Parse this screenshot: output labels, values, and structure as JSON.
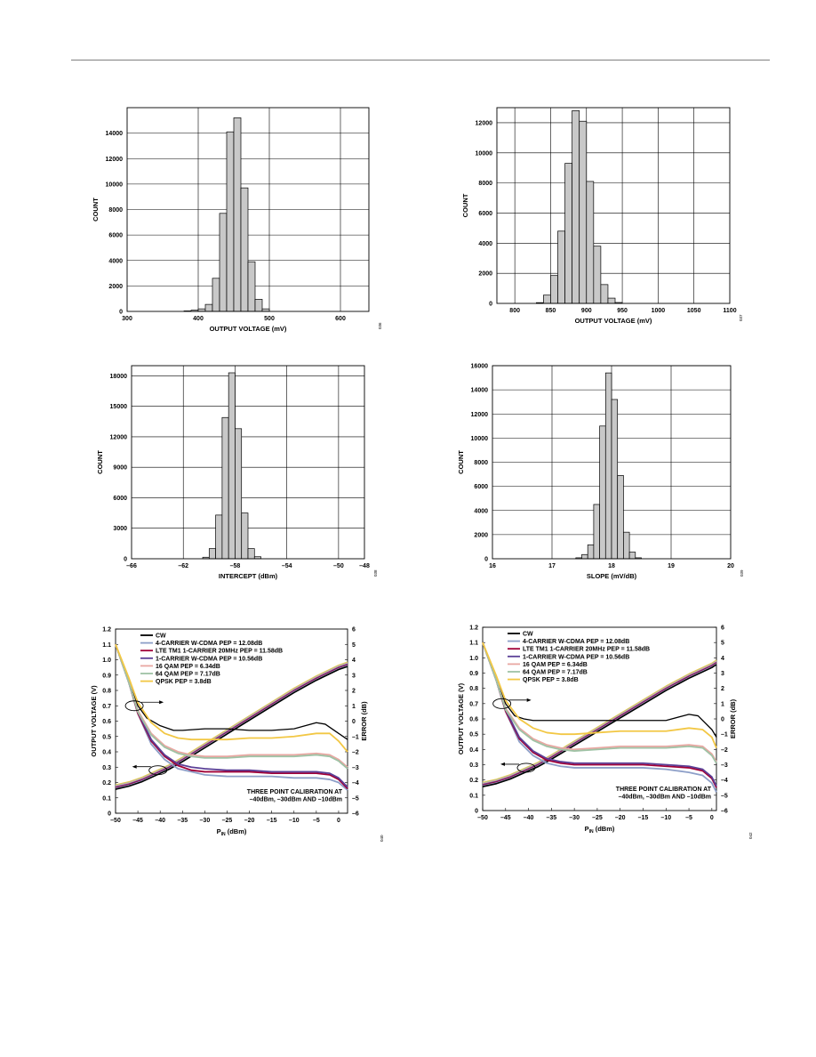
{
  "chart_data": [
    {
      "type": "bar",
      "xlabel": "OUTPUT VOLTAGE (mV)",
      "ylabel": "COUNT",
      "fig_id": "036",
      "xlim": [
        300,
        640
      ],
      "ylim": [
        0,
        16000
      ],
      "xticks": [
        300,
        400,
        500,
        600
      ],
      "yticks": [
        0,
        2000,
        4000,
        6000,
        8000,
        10000,
        12000,
        14000
      ],
      "bin_width": 10,
      "bins": [
        {
          "x": 380,
          "count": 40
        },
        {
          "x": 390,
          "count": 100
        },
        {
          "x": 400,
          "count": 200
        },
        {
          "x": 410,
          "count": 550
        },
        {
          "x": 420,
          "count": 2600
        },
        {
          "x": 430,
          "count": 7700
        },
        {
          "x": 440,
          "count": 14100
        },
        {
          "x": 450,
          "count": 15200
        },
        {
          "x": 460,
          "count": 9700
        },
        {
          "x": 470,
          "count": 3900
        },
        {
          "x": 480,
          "count": 950
        },
        {
          "x": 490,
          "count": 200
        }
      ]
    },
    {
      "type": "bar",
      "xlabel": "OUTPUT VOLTAGE (mV)",
      "ylabel": "COUNT",
      "fig_id": "037",
      "xlim": [
        775,
        1100
      ],
      "ylim": [
        0,
        13000
      ],
      "xticks": [
        800,
        850,
        900,
        950,
        1000,
        1050,
        1100
      ],
      "yticks": [
        0,
        2000,
        4000,
        6000,
        8000,
        10000,
        12000
      ],
      "bin_width": 10,
      "bins": [
        {
          "x": 830,
          "count": 50
        },
        {
          "x": 840,
          "count": 550
        },
        {
          "x": 850,
          "count": 1850
        },
        {
          "x": 860,
          "count": 4800
        },
        {
          "x": 870,
          "count": 9300
        },
        {
          "x": 880,
          "count": 12800
        },
        {
          "x": 890,
          "count": 12100
        },
        {
          "x": 900,
          "count": 8100
        },
        {
          "x": 910,
          "count": 3800
        },
        {
          "x": 920,
          "count": 1250
        },
        {
          "x": 930,
          "count": 350
        },
        {
          "x": 940,
          "count": 60
        }
      ]
    },
    {
      "type": "bar",
      "xlabel": "INTERCEPT (dBm)",
      "ylabel": "COUNT",
      "fig_id": "038",
      "xlim": [
        -66,
        -48
      ],
      "ylim": [
        0,
        19000
      ],
      "xticks": [
        -66,
        -62,
        -58,
        -54,
        -50,
        -48
      ],
      "ytick_values": [
        0,
        3000,
        6000,
        9000,
        12000,
        15000,
        18000
      ],
      "ytick_labels": [
        "0",
        "3000",
        "6000",
        "9000",
        "12000",
        "15000",
        "18000"
      ],
      "bin_width": 0.5,
      "bins": [
        {
          "x": -60.5,
          "count": 150
        },
        {
          "x": -60.0,
          "count": 1000
        },
        {
          "x": -59.5,
          "count": 4300
        },
        {
          "x": -59.0,
          "count": 13900
        },
        {
          "x": -58.5,
          "count": 18300
        },
        {
          "x": -58.0,
          "count": 12800
        },
        {
          "x": -57.5,
          "count": 4500
        },
        {
          "x": -57.0,
          "count": 1000
        },
        {
          "x": -56.5,
          "count": 200
        }
      ]
    },
    {
      "type": "bar",
      "xlabel": "SLOPE (mV/dB)",
      "ylabel": "COUNT",
      "fig_id": "039",
      "xlim": [
        16,
        20
      ],
      "ylim": [
        0,
        16000
      ],
      "xticks": [
        16,
        17,
        18,
        19,
        20
      ],
      "yticks": [
        0,
        2000,
        4000,
        6000,
        8000,
        10000,
        12000,
        14000,
        16000
      ],
      "bin_width": 0.1,
      "bins": [
        {
          "x": 17.4,
          "count": 80
        },
        {
          "x": 17.5,
          "count": 350
        },
        {
          "x": 17.6,
          "count": 1150
        },
        {
          "x": 17.7,
          "count": 4500
        },
        {
          "x": 17.8,
          "count": 11000
        },
        {
          "x": 17.9,
          "count": 15400
        },
        {
          "x": 18.0,
          "count": 13200
        },
        {
          "x": 18.1,
          "count": 6900
        },
        {
          "x": 18.2,
          "count": 2200
        },
        {
          "x": 18.3,
          "count": 550
        },
        {
          "x": 18.4,
          "count": 80
        }
      ]
    },
    {
      "type": "line",
      "xlabel_main": "P",
      "xlabel_sub": "IN",
      "xlabel_tail": " (dBm)",
      "ylabel": "OUTPUT VOLTAGE (V)",
      "y2label": "ERROR (dB)",
      "fig_id": "040",
      "xlim": [
        -50,
        2
      ],
      "ylim": [
        0,
        1.2
      ],
      "y2lim": [
        -6,
        6
      ],
      "xticks": [
        -50,
        -45,
        -40,
        -35,
        -30,
        -25,
        -20,
        -15,
        -10,
        -5,
        0
      ],
      "yticks": [
        0,
        0.1,
        0.2,
        0.3,
        0.4,
        0.5,
        0.6,
        0.7,
        0.8,
        0.9,
        1.0,
        1.1,
        1.2
      ],
      "y2ticks": [
        -6,
        -5,
        -4,
        -3,
        -2,
        -1,
        0,
        1,
        2,
        3,
        4,
        5,
        6
      ],
      "note_lines": [
        "THREE POINT CALIBRATION AT",
        "–40dBm, –30dBm AND –10dBm"
      ],
      "output_curve": {
        "x": [
          -50,
          -47,
          -44,
          -41,
          -38,
          -35,
          -30,
          -25,
          -20,
          -15,
          -10,
          -5,
          0,
          2
        ],
        "y": [
          0.17,
          0.19,
          0.22,
          0.26,
          0.3,
          0.35,
          0.44,
          0.53,
          0.62,
          0.71,
          0.8,
          0.88,
          0.95,
          0.97
        ]
      },
      "series": [
        {
          "name": "CW",
          "color": "#000000",
          "x": [
            -50,
            -47,
            -45,
            -43,
            -40,
            -37,
            -35,
            -30,
            -25,
            -20,
            -15,
            -10,
            -5,
            -3,
            0,
            2
          ],
          "y": [
            5.0,
            2.5,
            1.0,
            0.2,
            -0.3,
            -0.6,
            -0.6,
            -0.5,
            -0.5,
            -0.6,
            -0.6,
            -0.5,
            -0.1,
            -0.2,
            -0.8,
            -1.2
          ]
        },
        {
          "name": "4-CARRIER W-CDMA PEP = 12.08dB",
          "color": "#8d9fc8",
          "x": [
            -50,
            -47,
            -45,
            -42,
            -39,
            -36,
            -33,
            -30,
            -25,
            -20,
            -15,
            -10,
            -5,
            -2,
            0,
            2
          ],
          "y": [
            5.0,
            2.5,
            0.5,
            -1.5,
            -2.5,
            -3.1,
            -3.3,
            -3.5,
            -3.6,
            -3.6,
            -3.6,
            -3.7,
            -3.7,
            -3.8,
            -4.0,
            -4.5
          ]
        },
        {
          "name": "LTE TM1 1-CARRIER 20MHz PEP = 11.58dB",
          "color": "#a00037",
          "x": [
            -50,
            -47,
            -45,
            -42,
            -39,
            -36,
            -33,
            -30,
            -25,
            -20,
            -15,
            -10,
            -5,
            -2,
            0,
            2
          ],
          "y": [
            5.0,
            2.5,
            0.5,
            -1.3,
            -2.3,
            -2.9,
            -3.2,
            -3.3,
            -3.3,
            -3.3,
            -3.4,
            -3.4,
            -3.4,
            -3.5,
            -3.8,
            -4.4
          ]
        },
        {
          "name": "1-CARRIER W-CDMA PEP = 10.56dB",
          "color": "#5b3f96",
          "x": [
            -50,
            -47,
            -45,
            -42,
            -39,
            -36,
            -33,
            -30,
            -25,
            -20,
            -15,
            -10,
            -5,
            -2,
            0,
            2
          ],
          "y": [
            5.0,
            2.5,
            0.6,
            -1.2,
            -2.2,
            -2.8,
            -3.0,
            -3.1,
            -3.2,
            -3.2,
            -3.3,
            -3.3,
            -3.3,
            -3.4,
            -3.7,
            -4.3
          ]
        },
        {
          "name": "16 QAM PEP = 6.34dB",
          "color": "#e9a7a2",
          "x": [
            -50,
            -47,
            -45,
            -42,
            -39,
            -36,
            -33,
            -30,
            -25,
            -20,
            -15,
            -10,
            -5,
            -2,
            0,
            2
          ],
          "y": [
            5.0,
            2.5,
            0.7,
            -0.8,
            -1.6,
            -2.0,
            -2.2,
            -2.3,
            -2.3,
            -2.2,
            -2.2,
            -2.2,
            -2.1,
            -2.2,
            -2.5,
            -3.0
          ]
        },
        {
          "name": "64 QAM PEP = 7.17dB",
          "color": "#9fc2a5",
          "x": [
            -50,
            -47,
            -45,
            -42,
            -39,
            -36,
            -33,
            -30,
            -25,
            -20,
            -15,
            -10,
            -5,
            -2,
            0,
            2
          ],
          "y": [
            5.0,
            2.5,
            0.6,
            -0.9,
            -1.7,
            -2.1,
            -2.3,
            -2.4,
            -2.4,
            -2.3,
            -2.3,
            -2.3,
            -2.2,
            -2.3,
            -2.6,
            -3.1
          ]
        },
        {
          "name": "QPSK PEP = 3.8dB",
          "color": "#f2c744",
          "x": [
            -50,
            -47,
            -45,
            -42,
            -39,
            -36,
            -33,
            -30,
            -25,
            -20,
            -15,
            -10,
            -5,
            -2,
            0,
            2
          ],
          "y": [
            5.0,
            2.8,
            1.2,
            -0.1,
            -0.8,
            -1.1,
            -1.2,
            -1.2,
            -1.2,
            -1.1,
            -1.1,
            -1.0,
            -0.8,
            -0.8,
            -1.3,
            -2.0
          ]
        }
      ]
    },
    {
      "type": "line",
      "xlabel_main": "P",
      "xlabel_sub": "IN",
      "xlabel_tail": " (dBm)",
      "ylabel": "OUTPUT VOLTAGE (V)",
      "y2label": "ERROR (dB)",
      "fig_id": "042",
      "xlim": [
        -50,
        1
      ],
      "ylim": [
        0,
        1.2
      ],
      "y2lim": [
        -6,
        6
      ],
      "xticks": [
        -50,
        -45,
        -40,
        -35,
        -30,
        -25,
        -20,
        -15,
        -10,
        -5,
        0
      ],
      "yticks": [
        0,
        0.1,
        0.2,
        0.3,
        0.4,
        0.5,
        0.6,
        0.7,
        0.8,
        0.9,
        1.0,
        1.1,
        1.2
      ],
      "y2ticks": [
        -6,
        -5,
        -4,
        -3,
        -2,
        -1,
        0,
        1,
        2,
        3,
        4,
        5,
        6
      ],
      "note_lines": [
        "THREE POINT CALIBRATION AT",
        "–40dBm, –30dBm AND –10dBm"
      ],
      "output_curve": {
        "x": [
          -50,
          -47,
          -44,
          -41,
          -38,
          -35,
          -30,
          -25,
          -20,
          -15,
          -10,
          -5,
          0,
          1
        ],
        "y": [
          0.17,
          0.19,
          0.22,
          0.26,
          0.3,
          0.35,
          0.44,
          0.53,
          0.62,
          0.71,
          0.8,
          0.88,
          0.95,
          0.97
        ]
      },
      "series": [
        {
          "name": "CW",
          "color": "#000000",
          "x": [
            -50,
            -47,
            -45,
            -43,
            -41,
            -39,
            -35,
            -30,
            -25,
            -20,
            -15,
            -10,
            -5,
            -3,
            0,
            1
          ],
          "y": [
            5.0,
            2.5,
            1.0,
            0.2,
            0.0,
            -0.1,
            -0.1,
            -0.1,
            -0.1,
            -0.1,
            -0.1,
            -0.1,
            0.3,
            0.2,
            -0.7,
            -1.2
          ]
        },
        {
          "name": "4-CARRIER W-CDMA PEP = 12.08dB",
          "color": "#8d9fc8",
          "x": [
            -50,
            -47,
            -45,
            -42,
            -39,
            -36,
            -33,
            -30,
            -25,
            -20,
            -15,
            -10,
            -5,
            -2,
            0,
            1
          ],
          "y": [
            5.0,
            2.5,
            0.5,
            -1.5,
            -2.4,
            -2.9,
            -3.1,
            -3.2,
            -3.2,
            -3.2,
            -3.2,
            -3.3,
            -3.5,
            -3.7,
            -4.2,
            -4.8
          ]
        },
        {
          "name": "LTE TM1 1-CARRIER 20MHz PEP = 11.58dB",
          "color": "#a00037",
          "x": [
            -50,
            -47,
            -45,
            -42,
            -39,
            -36,
            -33,
            -30,
            -25,
            -20,
            -15,
            -10,
            -5,
            -2,
            0,
            1
          ],
          "y": [
            5.0,
            2.5,
            0.5,
            -1.3,
            -2.2,
            -2.7,
            -2.9,
            -3.0,
            -3.0,
            -3.0,
            -3.0,
            -3.1,
            -3.2,
            -3.4,
            -3.9,
            -4.5
          ]
        },
        {
          "name": "1-CARRIER W-CDMA PEP = 10.56dB",
          "color": "#5b3f96",
          "x": [
            -50,
            -47,
            -45,
            -42,
            -39,
            -36,
            -33,
            -30,
            -25,
            -20,
            -15,
            -10,
            -5,
            -2,
            0,
            1
          ],
          "y": [
            5.0,
            2.5,
            0.6,
            -1.2,
            -2.1,
            -2.6,
            -2.8,
            -2.9,
            -2.9,
            -2.9,
            -2.9,
            -3.0,
            -3.1,
            -3.3,
            -3.8,
            -4.4
          ]
        },
        {
          "name": "16 QAM PEP = 6.34dB",
          "color": "#e9a7a2",
          "x": [
            -50,
            -47,
            -45,
            -42,
            -39,
            -36,
            -33,
            -30,
            -25,
            -20,
            -15,
            -10,
            -5,
            -2,
            0,
            1
          ],
          "y": [
            5.0,
            2.5,
            0.7,
            -0.6,
            -1.3,
            -1.7,
            -1.9,
            -2.0,
            -1.9,
            -1.8,
            -1.8,
            -1.8,
            -1.7,
            -1.8,
            -2.3,
            -2.8
          ]
        },
        {
          "name": "64 QAM PEP = 7.17dB",
          "color": "#9fc2a5",
          "x": [
            -50,
            -47,
            -45,
            -42,
            -39,
            -36,
            -33,
            -30,
            -25,
            -20,
            -15,
            -10,
            -5,
            -2,
            0,
            1
          ],
          "y": [
            5.0,
            2.5,
            0.6,
            -0.7,
            -1.4,
            -1.8,
            -2.0,
            -2.1,
            -2.0,
            -1.9,
            -1.9,
            -1.9,
            -1.8,
            -1.9,
            -2.4,
            -2.9
          ]
        },
        {
          "name": "QPSK PEP = 3.8dB",
          "color": "#f2c744",
          "x": [
            -50,
            -47,
            -45,
            -42,
            -39,
            -36,
            -33,
            -30,
            -25,
            -20,
            -15,
            -10,
            -5,
            -2,
            0,
            1
          ],
          "y": [
            5.0,
            2.8,
            1.2,
            0.0,
            -0.6,
            -0.9,
            -1.0,
            -1.0,
            -0.9,
            -0.8,
            -0.8,
            -0.8,
            -0.6,
            -0.7,
            -1.2,
            -1.9
          ]
        }
      ]
    }
  ]
}
